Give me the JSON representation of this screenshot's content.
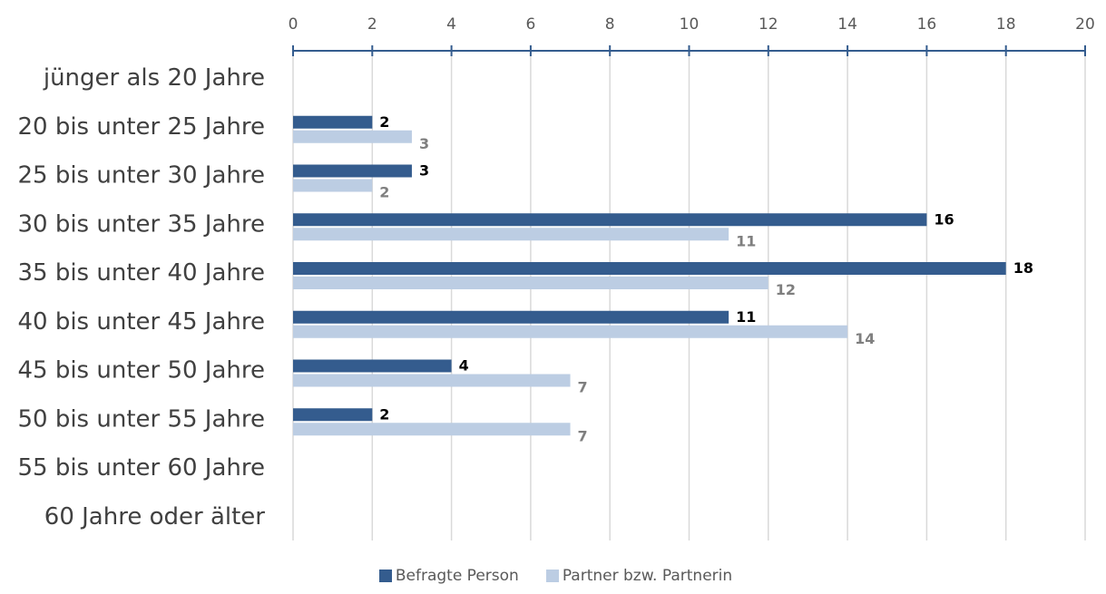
{
  "chart_data": {
    "type": "bar",
    "orientation": "horizontal",
    "categories": [
      "jünger als 20 Jahre",
      "20 bis unter 25 Jahre",
      "25 bis unter 30 Jahre",
      "30 bis unter 35 Jahre",
      "35 bis unter 40 Jahre",
      "40 bis unter 45 Jahre",
      "45 bis unter 50 Jahre",
      "50 bis unter 55 Jahre",
      "55 bis unter 60 Jahre",
      "60 Jahre oder älter"
    ],
    "series": [
      {
        "name": "Befragte Person",
        "color": "#345c8e",
        "values": [
          null,
          2,
          3,
          16,
          18,
          11,
          4,
          2,
          null,
          null
        ]
      },
      {
        "name": "Partner bzw. Partnerin",
        "color": "#bccde3",
        "values": [
          null,
          3,
          2,
          11,
          12,
          14,
          7,
          7,
          null,
          null
        ]
      }
    ],
    "xlim": [
      0,
      20
    ],
    "ticks": [
      0,
      2,
      4,
      6,
      8,
      10,
      12,
      14,
      16,
      18,
      20
    ],
    "axis_position": "top",
    "grid": true,
    "legend": "bottom-center",
    "title": "",
    "xlabel": "",
    "ylabel": ""
  }
}
